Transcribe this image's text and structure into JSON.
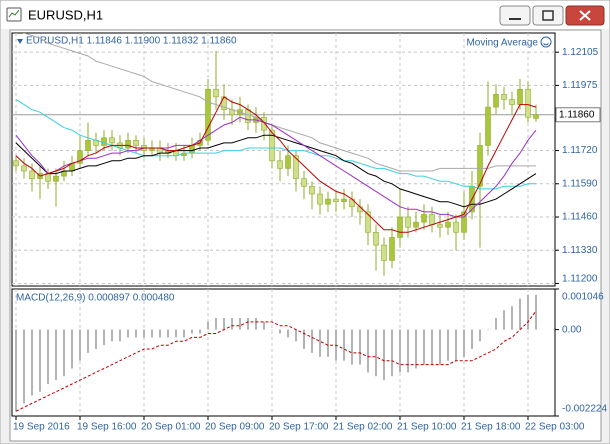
{
  "window": {
    "title": "EURUSD,H1"
  },
  "chart_data": [
    {
      "type": "candlestick",
      "title": "EURUSD,H1  1.11846 1.11900 1.11832 1.11860",
      "indicator_label": "Moving Average",
      "categories": [
        "19 Sep 2016",
        null,
        null,
        null,
        null,
        null,
        null,
        null,
        "19 Sep 16:00",
        null,
        null,
        null,
        null,
        null,
        null,
        null,
        "20 Sep 01:00",
        null,
        null,
        null,
        null,
        null,
        null,
        null,
        "20 Sep 09:00",
        null,
        null,
        null,
        null,
        null,
        null,
        null,
        "20 Sep 17:00",
        null,
        null,
        null,
        null,
        null,
        null,
        null,
        "21 Sep 02:00",
        null,
        null,
        null,
        null,
        null,
        null,
        null,
        "21 Sep 10:00",
        null,
        null,
        null,
        null,
        null,
        null,
        null,
        "21 Sep 18:00",
        null,
        null,
        null,
        null,
        null,
        null,
        null,
        "22 Sep 03:00",
        null
      ],
      "open": [
        1.1168,
        1.1166,
        1.1164,
        1.1161,
        1.1163,
        1.116,
        1.1162,
        1.1164,
        1.1167,
        1.1172,
        1.1176,
        1.1174,
        1.1177,
        1.1175,
        1.1173,
        1.1176,
        1.1174,
        1.1172,
        1.1173,
        1.1171,
        1.1172,
        1.117,
        1.1171,
        1.1174,
        1.1176,
        1.1196,
        1.1193,
        1.1188,
        1.1186,
        1.1188,
        1.1183,
        1.1185,
        1.118,
        1.1168,
        1.1165,
        1.117,
        1.1161,
        1.1158,
        1.1155,
        1.1151,
        1.1153,
        1.1152,
        1.1153,
        1.115,
        1.1148,
        1.114,
        1.1135,
        1.1129,
        1.1138,
        1.1146,
        1.1142,
        1.1144,
        1.1147,
        1.1143,
        1.1142,
        1.1144,
        1.114,
        1.1148,
        1.1158,
        1.1174,
        1.1189,
        1.1194,
        1.1192,
        1.119,
        1.1196,
        1.11846
      ],
      "high": [
        1.117,
        1.1169,
        1.1167,
        1.1166,
        1.1165,
        1.1165,
        1.1168,
        1.117,
        1.1178,
        1.1183,
        1.1179,
        1.118,
        1.118,
        1.1178,
        1.1179,
        1.1178,
        1.1177,
        1.1176,
        1.1176,
        1.1175,
        1.1175,
        1.1174,
        1.1177,
        1.1179,
        1.12,
        1.1211,
        1.1198,
        1.1192,
        1.1193,
        1.119,
        1.1189,
        1.1187,
        1.1182,
        1.1172,
        1.1174,
        1.1172,
        1.1164,
        1.116,
        1.1158,
        1.1156,
        1.1156,
        1.1157,
        1.1156,
        1.1153,
        1.1151,
        1.1143,
        1.1138,
        1.1142,
        1.1157,
        1.115,
        1.1148,
        1.1151,
        1.115,
        1.1147,
        1.1148,
        1.1147,
        1.1156,
        1.1164,
        1.1179,
        1.1199,
        1.1198,
        1.1197,
        1.1195,
        1.12,
        1.1199,
        1.119
      ],
      "low": [
        1.1164,
        1.1161,
        1.1156,
        1.1153,
        1.1157,
        1.115,
        1.116,
        1.1162,
        1.1165,
        1.117,
        1.1171,
        1.1172,
        1.1172,
        1.117,
        1.1171,
        1.1171,
        1.1169,
        1.117,
        1.1168,
        1.1169,
        1.1168,
        1.1168,
        1.1169,
        1.1172,
        1.1174,
        1.1188,
        1.1184,
        1.1182,
        1.1183,
        1.118,
        1.1179,
        1.1176,
        1.1165,
        1.116,
        1.1162,
        1.1156,
        1.1153,
        1.1149,
        1.1147,
        1.1148,
        1.1148,
        1.1149,
        1.1146,
        1.1143,
        1.1135,
        1.1125,
        1.1123,
        1.1126,
        1.1134,
        1.1138,
        1.114,
        1.1141,
        1.114,
        1.1138,
        1.1139,
        1.1133,
        1.1137,
        1.1145,
        1.1134,
        1.117,
        1.1186,
        1.1188,
        1.1186,
        1.1188,
        1.1183,
        1.11832
      ],
      "close": [
        1.1166,
        1.1164,
        1.1161,
        1.1163,
        1.116,
        1.1162,
        1.1164,
        1.1167,
        1.1172,
        1.1176,
        1.1174,
        1.1177,
        1.1175,
        1.1173,
        1.1176,
        1.1174,
        1.1172,
        1.1173,
        1.1171,
        1.1172,
        1.117,
        1.1171,
        1.1174,
        1.1176,
        1.1196,
        1.1193,
        1.1188,
        1.1186,
        1.1188,
        1.1183,
        1.1185,
        1.118,
        1.1168,
        1.1165,
        1.117,
        1.1161,
        1.1158,
        1.1155,
        1.1151,
        1.1153,
        1.1152,
        1.1153,
        1.115,
        1.1148,
        1.114,
        1.1135,
        1.1129,
        1.1138,
        1.1146,
        1.1142,
        1.1144,
        1.1147,
        1.1143,
        1.1142,
        1.1144,
        1.114,
        1.1148,
        1.1158,
        1.1174,
        1.1189,
        1.1194,
        1.1192,
        1.119,
        1.1196,
        1.1185,
        1.1186
      ],
      "bull_color": "#a9c63c",
      "bear_color": "#cfe08a",
      "wick_color": "#8fae2a",
      "lines": [
        {
          "color": "#a8a8a8",
          "values": [
            1.1219,
            1.1218,
            1.1217,
            1.1216,
            1.1214,
            1.1213,
            1.1212,
            1.1211,
            1.121,
            1.1209,
            1.1207,
            1.1206,
            1.1205,
            1.1204,
            1.1203,
            1.1202,
            1.1201,
            1.1199,
            1.1198,
            1.1197,
            1.1196,
            1.1195,
            1.1194,
            1.1193,
            1.1191,
            1.119,
            1.1189,
            1.1188,
            1.1187,
            1.1186,
            1.1185,
            1.1183,
            1.1182,
            1.1181,
            1.118,
            1.1179,
            1.1178,
            1.1177,
            1.1175,
            1.1174,
            1.1173,
            1.1172,
            1.1171,
            1.117,
            1.1169,
            1.1167,
            1.1166,
            1.1165,
            1.1164,
            1.1164,
            1.1164,
            1.1164,
            1.1164,
            1.1165,
            1.1165,
            1.1165,
            1.1165,
            1.1165,
            1.1165,
            1.1165,
            1.1166,
            1.1166,
            1.1166,
            1.1166,
            1.1166,
            1.1166
          ]
        },
        {
          "color": "#3ccfe0",
          "values": [
            1.1192,
            1.119,
            1.1188,
            1.1187,
            1.1185,
            1.1183,
            1.1181,
            1.118,
            1.1178,
            1.1177,
            1.1176,
            1.1175,
            1.1174,
            1.1173,
            1.1172,
            1.1171,
            1.117,
            1.117,
            1.117,
            1.117,
            1.117,
            1.1171,
            1.1171,
            1.1171,
            1.1171,
            1.1171,
            1.1172,
            1.1172,
            1.1172,
            1.1173,
            1.1173,
            1.1173,
            1.1173,
            1.1173,
            1.1172,
            1.1172,
            1.1172,
            1.1171,
            1.117,
            1.117,
            1.1169,
            1.1168,
            1.1168,
            1.1167,
            1.1166,
            1.1165,
            1.1165,
            1.1164,
            1.1163,
            1.1163,
            1.1162,
            1.1162,
            1.1161,
            1.116,
            1.116,
            1.1159,
            1.1158,
            1.1158,
            1.1157,
            1.1157,
            1.1157,
            1.1158,
            1.1158,
            1.1158,
            1.1159,
            1.1159
          ]
        },
        {
          "color": "#000000",
          "values": [
            1.1175,
            1.1172,
            1.1169,
            1.1166,
            1.1163,
            1.1163,
            1.1164,
            1.1164,
            1.1165,
            1.1166,
            1.1166,
            1.1167,
            1.1168,
            1.1168,
            1.1169,
            1.1169,
            1.117,
            1.117,
            1.1171,
            1.1171,
            1.1172,
            1.1172,
            1.1172,
            1.1173,
            1.1173,
            1.1174,
            1.1175,
            1.1175,
            1.1176,
            1.1177,
            1.1177,
            1.1178,
            1.1178,
            1.1177,
            1.1176,
            1.1175,
            1.1174,
            1.1173,
            1.1172,
            1.1171,
            1.117,
            1.1168,
            1.1167,
            1.1165,
            1.1163,
            1.1162,
            1.116,
            1.1159,
            1.1157,
            1.1156,
            1.1155,
            1.1154,
            1.1153,
            1.1152,
            1.1152,
            1.1151,
            1.115,
            1.1151,
            1.1151,
            1.1152,
            1.1153,
            1.1155,
            1.1157,
            1.1159,
            1.1161,
            1.1163
          ]
        },
        {
          "color": "#9b30c8",
          "values": [
            1.1178,
            1.1174,
            1.117,
            1.1167,
            1.1163,
            1.1164,
            1.1166,
            1.1167,
            1.1168,
            1.1169,
            1.1169,
            1.117,
            1.1171,
            1.1171,
            1.1172,
            1.1172,
            1.1173,
            1.1173,
            1.1173,
            1.1173,
            1.1174,
            1.1174,
            1.1174,
            1.1176,
            1.1178,
            1.118,
            1.1182,
            1.1183,
            1.1185,
            1.1184,
            1.1184,
            1.1183,
            1.1182,
            1.118,
            1.1178,
            1.1176,
            1.1174,
            1.1172,
            1.117,
            1.1168,
            1.1166,
            1.1164,
            1.1162,
            1.116,
            1.1158,
            1.1156,
            1.1154,
            1.1152,
            1.115,
            1.1149,
            1.1149,
            1.1148,
            1.1148,
            1.1147,
            1.1147,
            1.1146,
            1.1146,
            1.1149,
            1.1152,
            1.1155,
            1.1158,
            1.1162,
            1.1167,
            1.1171,
            1.1176,
            1.118
          ]
        },
        {
          "color": "#c00000",
          "values": [
            1.117,
            1.1167,
            1.1165,
            1.1162,
            1.1163,
            1.1164,
            1.1165,
            1.1167,
            1.1168,
            1.117,
            1.1171,
            1.1173,
            1.1174,
            1.1174,
            1.1174,
            1.1173,
            1.1173,
            1.1173,
            1.1173,
            1.1172,
            1.1172,
            1.1173,
            1.1174,
            1.1175,
            1.1181,
            1.1187,
            1.1193,
            1.1191,
            1.119,
            1.1188,
            1.1186,
            1.1183,
            1.1179,
            1.1176,
            1.1172,
            1.1169,
            1.1166,
            1.1163,
            1.116,
            1.1158,
            1.1156,
            1.1155,
            1.1153,
            1.115,
            1.1147,
            1.1144,
            1.1141,
            1.1141,
            1.114,
            1.114,
            1.1141,
            1.1142,
            1.1143,
            1.1144,
            1.1145,
            1.1146,
            1.1147,
            1.1153,
            1.1159,
            1.1166,
            1.1172,
            1.1178,
            1.1184,
            1.119,
            1.119,
            1.1189
          ]
        }
      ],
      "current_price": {
        "value": 1.1186,
        "label": "1.11860"
      },
      "ylim": [
        1.1119,
        1.1218
      ],
      "yticks": [
        1.12105,
        1.11975,
        {
          "value": 1.1172,
          "label": "1.11720"
        },
        {
          "value": 1.1159,
          "label": "1.11590"
        },
        {
          "value": 1.1146,
          "label": "1.11460"
        },
        {
          "value": 1.1133,
          "label": "1.11330"
        },
        {
          "value": 1.112,
          "label": "1.11200"
        }
      ],
      "grid": true
    },
    {
      "type": "macd",
      "title": "MACD(12,26,9) 0.000897 0.000480",
      "histogram": [
        -0.0021,
        -0.0019,
        -0.0017,
        -0.0016,
        -0.0014,
        -0.0013,
        -0.0012,
        -0.001,
        -0.0008,
        -0.0006,
        -0.0005,
        -0.0004,
        -0.0003,
        -0.0003,
        -0.0002,
        -0.0002,
        -0.0002,
        -0.0002,
        -0.0002,
        -0.0002,
        -0.0002,
        -0.0002,
        -0.0001,
        -0.0001,
        0.0002,
        0.0003,
        0.0003,
        0.0003,
        0.0003,
        0.0003,
        0.0003,
        0.0002,
        0,
        -0.0001,
        -0.0002,
        -0.0003,
        -0.0005,
        -0.0006,
        -0.0007,
        -0.0007,
        -0.0008,
        -0.0008,
        -0.0009,
        -0.0009,
        -0.0011,
        -0.0012,
        -0.0013,
        -0.0012,
        -0.0011,
        -0.0011,
        -0.001,
        -0.0009,
        -0.0009,
        -0.0009,
        -0.0008,
        -0.0008,
        -0.0007,
        -0.0005,
        -0.0003,
        0,
        0.0003,
        0.0005,
        0.0006,
        0.0008,
        0.0009,
        0.000897
      ],
      "signal": [
        -0.0021,
        -0.002,
        -0.0019,
        -0.0018,
        -0.0017,
        -0.0016,
        -0.0015,
        -0.0014,
        -0.0013,
        -0.0012,
        -0.0011,
        -0.001,
        -0.0009,
        -0.0008,
        -0.0007,
        -0.0006,
        -0.0005,
        -0.0005,
        -0.0004,
        -0.0004,
        -0.0003,
        -0.0003,
        -0.0002,
        -0.0002,
        -0.0001,
        -0.0001,
        0,
        0.0001,
        0.0001,
        0.0002,
        0.0002,
        0.0002,
        0.0002,
        0.0001,
        0.0001,
        0,
        -0.0001,
        -0.0002,
        -0.0003,
        -0.0004,
        -0.0004,
        -0.0005,
        -0.0006,
        -0.0006,
        -0.0007,
        -0.0007,
        -0.0008,
        -0.0008,
        -0.0009,
        -0.0009,
        -0.0009,
        -0.0009,
        -0.0009,
        -0.0009,
        -0.0009,
        -0.0008,
        -0.0008,
        -0.0008,
        -0.0007,
        -0.0006,
        -0.0005,
        -0.0003,
        -0.0002,
        0,
        0.0002,
        0.00048
      ],
      "histogram_color": "#b4b4b4",
      "signal_color": "#c00000",
      "ylim": [
        -0.002224,
        0.001046
      ],
      "yticks": [
        0.001046,
        {
          "value": 0,
          "label": "0.00"
        },
        -0.002224
      ]
    }
  ]
}
